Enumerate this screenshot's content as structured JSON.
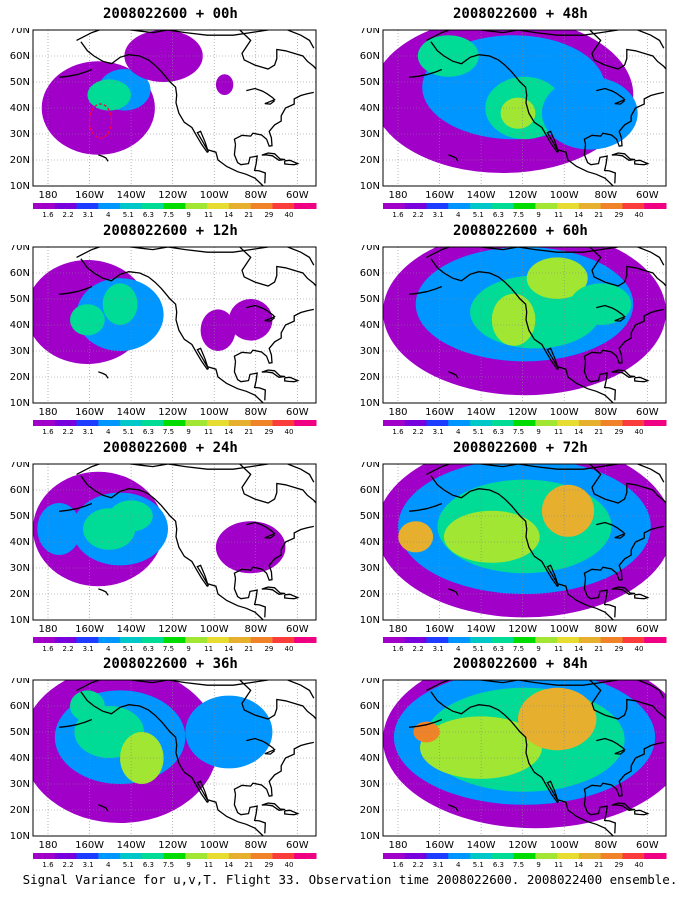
{
  "panels": [
    {
      "title": "2008022600 + 00h",
      "intensity": 0.25,
      "marker": true
    },
    {
      "title": "2008022600 + 12h",
      "intensity": 0.35,
      "marker": false
    },
    {
      "title": "2008022600 + 24h",
      "intensity": 0.45,
      "marker": false
    },
    {
      "title": "2008022600 + 36h",
      "intensity": 0.6,
      "marker": false
    },
    {
      "title": "2008022600 + 48h",
      "intensity": 0.55,
      "marker": false
    },
    {
      "title": "2008022600 + 60h",
      "intensity": 0.65,
      "marker": false
    },
    {
      "title": "2008022600 + 72h",
      "intensity": 0.75,
      "marker": false
    },
    {
      "title": "2008022600 + 84h",
      "intensity": 0.85,
      "marker": false
    }
  ],
  "axes": {
    "lat_labels": [
      "70N",
      "60N",
      "50N",
      "40N",
      "30N",
      "20N",
      "10N"
    ],
    "lon_labels": [
      "180",
      "160W",
      "140W",
      "120W",
      "100W",
      "80W",
      "60W"
    ]
  },
  "colorbar": {
    "labels": [
      "1.6",
      "2.2",
      "3.1",
      "4",
      "5.1",
      "6.3",
      "7.5",
      "9",
      "11",
      "14",
      "21",
      "29",
      "40"
    ],
    "colors": [
      "#a000c8",
      "#7800dc",
      "#1e3cff",
      "#0096ff",
      "#00c8c8",
      "#00dc96",
      "#00dc00",
      "#a0e632",
      "#e6dc32",
      "#e6af2d",
      "#f08228",
      "#fa3c3c",
      "#f00082"
    ]
  },
  "caption": "Signal Variance for u,v,T. Flight 33. Observation time 2008022600. 2008022400 ensemble."
}
